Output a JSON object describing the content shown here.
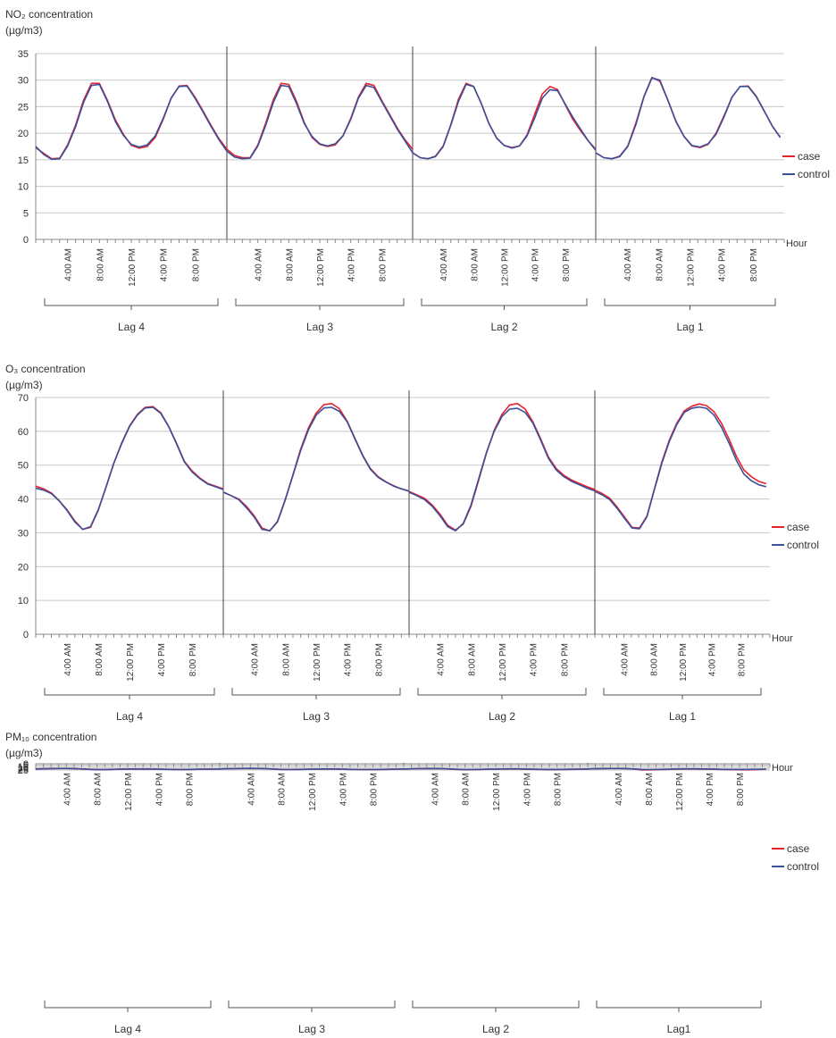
{
  "colors": {
    "case": "#e8222c",
    "control": "#3a4f9a"
  },
  "chart_data": [
    {
      "type": "line",
      "title_line1": "NO₂ concentration",
      "title_line2": "(µg/m3)",
      "ylim": [
        0,
        35
      ],
      "yticks": [
        0,
        5,
        10,
        15,
        20,
        25,
        30,
        35
      ],
      "x_axis_label": "Hour",
      "x_labels": [
        "4:00 AM",
        "8:00 AM",
        "12:00 PM",
        "4:00 PM",
        "8:00 PM"
      ],
      "lag_labels": [
        "Lag 4",
        "Lag 3",
        "Lag 2",
        "Lag 1"
      ],
      "legend": [
        "case",
        "control"
      ],
      "series": [
        {
          "name": "case",
          "values": [
            [
              17.3,
              16.2,
              15.2,
              15.3,
              17.8,
              21.5,
              26.2,
              29.4,
              29.4,
              26.2,
              22.5,
              19.8,
              17.7,
              17.2,
              17.5,
              19.2,
              22.6,
              26.6,
              28.9,
              29.0,
              26.8,
              24.2,
              21.5,
              19.0,
              17.0
            ],
            [
              17.0,
              15.8,
              15.4,
              15.4,
              17.8,
              21.8,
              26.3,
              29.4,
              29.2,
              26.0,
              22.0,
              19.2,
              17.9,
              17.5,
              17.8,
              19.5,
              22.8,
              26.8,
              29.4,
              29.0,
              26.2,
              23.6,
              21.0,
              18.8,
              17.0
            ],
            [
              16.3,
              15.4,
              15.2,
              15.7,
              17.6,
              21.6,
              26.4,
              29.4,
              28.8,
              25.6,
              21.8,
              19.1,
              17.7,
              17.3,
              17.6,
              19.7,
              23.6,
              27.4,
              28.8,
              28.2,
              25.4,
              22.6,
              20.5,
              18.6,
              17.0
            ],
            [
              16.3,
              15.4,
              15.2,
              15.7,
              17.6,
              21.9,
              26.9,
              30.5,
              29.8,
              26.2,
              22.3,
              19.4,
              17.6,
              17.3,
              17.9,
              20.0,
              23.3,
              26.8,
              28.8,
              28.9,
              27.0,
              24.2,
              21.4,
              19.3
            ]
          ]
        },
        {
          "name": "control",
          "values": [
            [
              17.5,
              16.0,
              15.1,
              15.2,
              17.6,
              21.2,
              25.8,
              29.0,
              29.2,
              26.0,
              22.2,
              19.6,
              17.9,
              17.4,
              17.8,
              19.5,
              22.8,
              26.6,
              28.8,
              28.9,
              26.6,
              24.0,
              21.3,
              18.8,
              16.6
            ],
            [
              16.6,
              15.5,
              15.2,
              15.3,
              17.6,
              21.4,
              25.8,
              29.0,
              28.8,
              25.6,
              21.8,
              19.4,
              18.0,
              17.6,
              18.0,
              19.5,
              22.6,
              26.6,
              29.0,
              28.6,
              26.0,
              23.4,
              20.8,
              18.6,
              16.3
            ],
            [
              16.3,
              15.4,
              15.2,
              15.6,
              17.5,
              21.5,
              26.0,
              29.2,
              28.8,
              25.6,
              21.8,
              19.1,
              17.7,
              17.2,
              17.6,
              19.5,
              22.9,
              26.6,
              28.2,
              28.0,
              25.5,
              23.0,
              20.8,
              18.6,
              16.8
            ],
            [
              16.3,
              15.4,
              15.2,
              15.6,
              17.5,
              21.6,
              26.8,
              30.4,
              30.0,
              26.2,
              22.2,
              19.4,
              17.7,
              17.4,
              18.0,
              19.8,
              23.1,
              26.8,
              28.8,
              28.8,
              26.9,
              24.2,
              21.4,
              19.2
            ]
          ]
        }
      ]
    },
    {
      "type": "line",
      "title_line1": "O₃ concentration",
      "title_line2": "(µg/m3)",
      "ylim": [
        0,
        70
      ],
      "yticks": [
        0,
        10,
        20,
        30,
        40,
        50,
        60,
        70
      ],
      "x_axis_label": "Hour",
      "x_labels": [
        "4:00 AM",
        "8:00 AM",
        "12:00 PM",
        "4:00 PM",
        "8:00 PM"
      ],
      "lag_labels": [
        "Lag 4",
        "Lag 3",
        "Lag 2",
        "Lag 1"
      ],
      "legend": [
        "case",
        "control"
      ],
      "series": [
        {
          "name": "case",
          "values": [
            [
              43.8,
              43.0,
              41.8,
              39.5,
              36.8,
              33.5,
              31.0,
              31.6,
              36.6,
              43.5,
              50.6,
              56.6,
              61.6,
              65.0,
              67.1,
              67.3,
              65.5,
              61.5,
              56.6,
              51.2,
              48.3,
              46.2,
              44.6,
              43.8,
              43.0
            ],
            [
              42.0,
              41.0,
              40.0,
              37.8,
              35.0,
              31.4,
              30.6,
              33.2,
              39.6,
              47.2,
              54.8,
              61.0,
              65.4,
              67.9,
              68.2,
              66.7,
              63.0,
              58.0,
              53.0,
              49.0,
              46.6,
              45.1,
              43.9,
              43.0,
              42.3
            ],
            [
              42.2,
              41.2,
              40.2,
              38.2,
              35.5,
              32.2,
              30.8,
              32.6,
              37.8,
              45.6,
              53.6,
              60.3,
              65.0,
              67.8,
              68.2,
              66.6,
              62.8,
              57.8,
              52.4,
              49.0,
              47.0,
              45.6,
              44.6,
              43.6,
              42.8
            ],
            [
              42.6,
              41.6,
              40.2,
              37.6,
              34.6,
              31.6,
              31.4,
              35.0,
              43.0,
              51.0,
              57.4,
              62.4,
              66.0,
              67.4,
              68.1,
              67.6,
              65.8,
              62.4,
              57.8,
              52.6,
              48.6,
              46.6,
              45.2,
              44.5
            ]
          ]
        },
        {
          "name": "control",
          "values": [
            [
              43.2,
              42.6,
              41.6,
              39.4,
              36.6,
              33.2,
              31.0,
              31.8,
              36.8,
              43.6,
              50.6,
              56.4,
              61.4,
              64.8,
              66.9,
              67.1,
              65.3,
              61.4,
              56.4,
              51.0,
              48.0,
              46.0,
              44.4,
              43.6,
              42.8
            ],
            [
              42.0,
              41.0,
              39.8,
              37.4,
              34.6,
              31.0,
              30.6,
              33.4,
              39.8,
              47.0,
              54.4,
              60.4,
              64.8,
              66.9,
              67.1,
              65.9,
              62.8,
              57.8,
              52.8,
              48.8,
              46.4,
              45.0,
              43.8,
              43.0,
              42.3
            ],
            [
              42.0,
              41.0,
              39.8,
              37.8,
              35.0,
              31.8,
              30.6,
              32.8,
              38.2,
              46.0,
              53.8,
              60.0,
              64.4,
              66.6,
              66.8,
              65.6,
              62.4,
              57.4,
              52.0,
              48.6,
              46.6,
              45.2,
              44.2,
              43.2,
              42.4
            ],
            [
              42.2,
              41.2,
              39.8,
              37.2,
              34.2,
              31.4,
              31.2,
              34.8,
              42.8,
              50.6,
              57.0,
              62.0,
              65.6,
              66.8,
              67.2,
              66.8,
              64.8,
              61.2,
              56.6,
              51.4,
              47.4,
              45.4,
              44.2,
              43.6
            ]
          ]
        }
      ]
    },
    {
      "type": "line",
      "title_line1": "PM₁₀ concentration",
      "title_line2": "(µg/m3)",
      "ylim": [
        0,
        25
      ],
      "yticks": [
        0,
        5,
        10,
        15,
        20,
        25
      ],
      "x_axis_label": "Hour",
      "x_labels": [
        "4:00 AM",
        "8:00 AM",
        "12:00 PM",
        "4:00 PM",
        "8:00 PM"
      ],
      "lag_labels": [
        "Lag 4",
        "Lag 3",
        "Lag 2",
        "Lag1"
      ],
      "legend": [
        "case",
        "control"
      ],
      "series": [
        {
          "name": "case",
          "values": [
            [
              20.8,
              19.9,
              19.3,
              18.9,
              18.8,
              19.3,
              20.6,
              22.3,
              23.6,
              23.6,
              22.7,
              21.7,
              21.0,
              20.8,
              20.9,
              21.1,
              21.6,
              22.3,
              23.0,
              23.5,
              23.0,
              22.3,
              21.8,
              21.6,
              21.3
            ],
            [
              20.6,
              20.0,
              19.5,
              18.9,
              18.7,
              19.0,
              19.8,
              21.0,
              22.6,
              23.3,
              23.0,
              22.3,
              21.6,
              21.1,
              20.7,
              21.0,
              21.8,
              22.6,
              23.3,
              23.5,
              23.7,
              23.3,
              22.6,
              21.9,
              21.3
            ],
            [
              21.0,
              20.2,
              19.5,
              19.2,
              19.2,
              19.8,
              21.2,
              22.7,
              24.0,
              23.6,
              22.8,
              22.1,
              21.6,
              21.4,
              21.6,
              21.5,
              22.0,
              22.6,
              23.2,
              23.6,
              23.6,
              23.3,
              22.6,
              21.8,
              21.1
            ],
            [
              20.8,
              20.1,
              19.6,
              19.0,
              18.8,
              19.5,
              21.6,
              24.8,
              24.3,
              23.5,
              22.7,
              21.7,
              21.0,
              20.9,
              21.3,
              21.8,
              21.8,
              22.5,
              23.6,
              23.7,
              24.2,
              23.8,
              23.2,
              22.0
            ]
          ]
        },
        {
          "name": "control",
          "values": [
            [
              21.2,
              20.4,
              19.7,
              19.1,
              19.0,
              19.5,
              20.8,
              22.4,
              23.5,
              23.4,
              22.5,
              21.6,
              21.0,
              20.9,
              21.0,
              21.2,
              21.7,
              22.4,
              23.0,
              23.3,
              22.8,
              22.2,
              21.7,
              21.5,
              21.1
            ],
            [
              20.7,
              20.1,
              19.5,
              19.0,
              18.6,
              18.9,
              19.8,
              21.2,
              22.9,
              23.3,
              23.0,
              22.4,
              21.7,
              21.1,
              20.8,
              20.9,
              21.6,
              22.5,
              23.2,
              23.3,
              23.3,
              22.9,
              22.2,
              21.6,
              21.0
            ],
            [
              21.2,
              20.4,
              19.6,
              19.2,
              19.0,
              19.5,
              20.7,
              22.2,
              23.4,
              23.2,
              22.6,
              21.8,
              21.0,
              20.6,
              20.2,
              20.3,
              21.0,
              21.8,
              22.5,
              22.8,
              22.7,
              22.4,
              21.9,
              21.4,
              20.9
            ],
            [
              20.6,
              19.9,
              19.4,
              18.9,
              18.8,
              19.2,
              20.8,
              22.8,
              23.2,
              22.8,
              22.1,
              21.1,
              20.5,
              20.2,
              20.4,
              20.8,
              21.2,
              22.0,
              22.6,
              22.8,
              23.0,
              22.6,
              22.1,
              21.6
            ]
          ]
        }
      ]
    }
  ]
}
